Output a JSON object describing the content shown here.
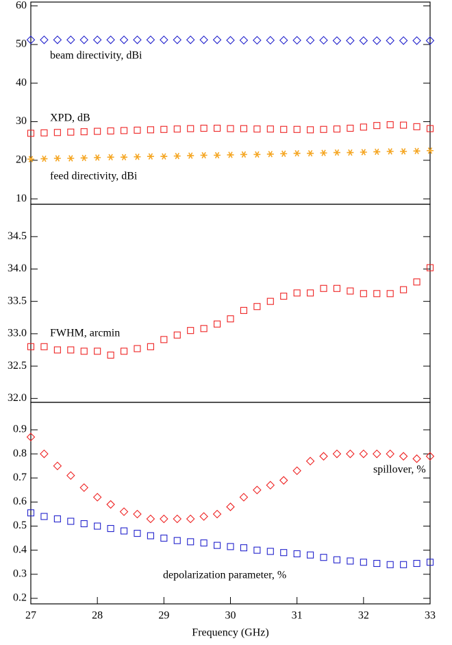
{
  "chart_data": [
    {
      "type": "scatter",
      "x": [
        27,
        27.2,
        27.4,
        27.6,
        27.8,
        28,
        28.2,
        28.4,
        28.6,
        28.8,
        29,
        29.2,
        29.4,
        29.6,
        29.8,
        30,
        30.2,
        30.4,
        30.6,
        30.8,
        31,
        31.2,
        31.4,
        31.6,
        31.8,
        32,
        32.2,
        32.4,
        32.6,
        32.8,
        33
      ],
      "xlim": [
        27,
        33
      ],
      "ylim": [
        8.6,
        61
      ],
      "yticks": [
        10,
        20,
        30,
        40,
        50,
        60
      ],
      "series": [
        {
          "name": "beam directivity, dBi",
          "color": "#2222cc",
          "marker": "diamond",
          "values": [
            51.2,
            51.2,
            51.2,
            51.2,
            51.2,
            51.2,
            51.2,
            51.2,
            51.2,
            51.2,
            51.2,
            51.2,
            51.2,
            51.2,
            51.2,
            51.1,
            51.1,
            51.1,
            51.1,
            51.1,
            51.1,
            51.1,
            51.1,
            51.0,
            51.0,
            51.0,
            51.0,
            51.0,
            51.0,
            51.0,
            51.0
          ]
        },
        {
          "name": "XPD, dB",
          "color": "#ee2222",
          "marker": "square",
          "values": [
            27.0,
            27.1,
            27.2,
            27.3,
            27.4,
            27.5,
            27.6,
            27.7,
            27.8,
            27.9,
            28.0,
            28.1,
            28.2,
            28.3,
            28.3,
            28.2,
            28.2,
            28.1,
            28.1,
            28.0,
            28.0,
            27.9,
            28.0,
            28.1,
            28.3,
            28.6,
            29.0,
            29.2,
            29.1,
            28.7,
            28.2
          ]
        },
        {
          "name": "feed directivity, dBi",
          "color": "#f5a623",
          "marker": "asterisk",
          "values": [
            20.3,
            20.4,
            20.5,
            20.5,
            20.6,
            20.7,
            20.8,
            20.8,
            20.9,
            21.0,
            21.0,
            21.1,
            21.2,
            21.3,
            21.3,
            21.4,
            21.5,
            21.5,
            21.6,
            21.7,
            21.8,
            21.8,
            21.9,
            22.0,
            22.0,
            22.1,
            22.2,
            22.3,
            22.3,
            22.4,
            22.5
          ]
        }
      ]
    },
    {
      "type": "scatter",
      "x": [
        27,
        27.2,
        27.4,
        27.6,
        27.8,
        28,
        28.2,
        28.4,
        28.6,
        28.8,
        29,
        29.2,
        29.4,
        29.6,
        29.8,
        30,
        30.2,
        30.4,
        30.6,
        30.8,
        31,
        31.2,
        31.4,
        31.6,
        31.8,
        32,
        32.2,
        32.4,
        32.6,
        32.8,
        33
      ],
      "xlim": [
        27,
        33
      ],
      "ylim": [
        31.94,
        35
      ],
      "yticks": [
        {
          "value": 32,
          "label": "32.0"
        },
        32.5,
        {
          "value": 33,
          "label": "33.0"
        },
        33.5,
        {
          "value": 34,
          "label": "34.0"
        },
        34.5
      ],
      "series": [
        {
          "name": "FWHM, arcmin",
          "color": "#ee2222",
          "marker": "square",
          "values": [
            32.8,
            32.8,
            32.75,
            32.75,
            32.73,
            32.73,
            32.67,
            32.73,
            32.77,
            32.8,
            32.91,
            32.98,
            33.05,
            33.08,
            33.15,
            33.23,
            33.36,
            33.42,
            33.5,
            33.58,
            33.63,
            33.63,
            33.7,
            33.7,
            33.66,
            33.62,
            33.62,
            33.62,
            33.68,
            33.8,
            34.02
          ]
        }
      ]
    },
    {
      "type": "scatter",
      "x": [
        27,
        27.2,
        27.4,
        27.6,
        27.8,
        28,
        28.2,
        28.4,
        28.6,
        28.8,
        29,
        29.2,
        29.4,
        29.6,
        29.8,
        30,
        30.2,
        30.4,
        30.6,
        30.8,
        31,
        31.2,
        31.4,
        31.6,
        31.8,
        32,
        32.2,
        32.4,
        32.6,
        32.8,
        33
      ],
      "xlim": [
        27,
        33
      ],
      "xticks": [
        27,
        28,
        29,
        30,
        31,
        32,
        33
      ],
      "xlabel": "Frequency (GHz)",
      "ylim": [
        0.177,
        1.014
      ],
      "yticks": [
        0.2,
        0.3,
        0.4,
        0.5,
        0.6,
        0.7,
        0.8,
        0.9
      ],
      "series": [
        {
          "name": "spillover, %",
          "color": "#ee2222",
          "marker": "diamond",
          "values": [
            0.87,
            0.8,
            0.75,
            0.71,
            0.66,
            0.62,
            0.59,
            0.56,
            0.55,
            0.53,
            0.53,
            0.53,
            0.53,
            0.54,
            0.55,
            0.58,
            0.62,
            0.65,
            0.67,
            0.69,
            0.73,
            0.77,
            0.79,
            0.8,
            0.8,
            0.8,
            0.8,
            0.8,
            0.79,
            0.78,
            0.79
          ]
        },
        {
          "name": "depolarization parameter, %",
          "color": "#2222cc",
          "marker": "square",
          "values": [
            0.555,
            0.54,
            0.53,
            0.52,
            0.51,
            0.5,
            0.49,
            0.48,
            0.47,
            0.46,
            0.45,
            0.44,
            0.435,
            0.43,
            0.42,
            0.415,
            0.41,
            0.4,
            0.395,
            0.39,
            0.385,
            0.38,
            0.37,
            0.36,
            0.355,
            0.35,
            0.345,
            0.34,
            0.34,
            0.345,
            0.35
          ]
        }
      ]
    }
  ]
}
